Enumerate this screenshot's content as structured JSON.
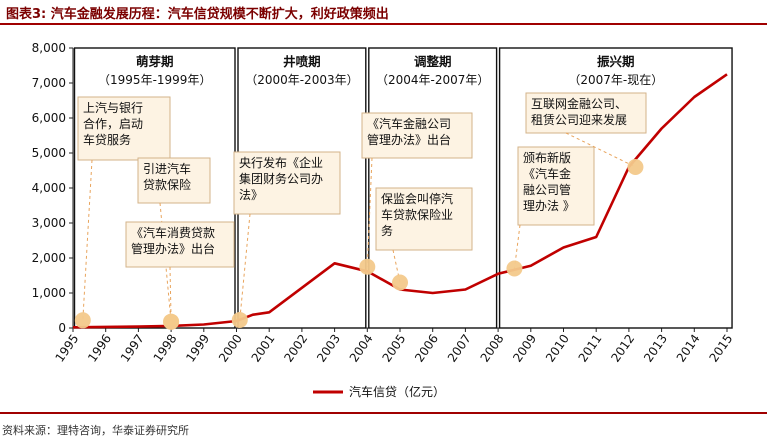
{
  "header": {
    "title": "图表3:   汽车金融发展历程：汽车信贷规模不断扩大，利好政策频出"
  },
  "footer": {
    "source": "资料来源：理特咨询，华泰证券研究所"
  },
  "chart_data": {
    "type": "line",
    "x": [
      "1995",
      "1996",
      "1997",
      "1998",
      "1999",
      "2000",
      "2001",
      "2002",
      "2003",
      "2004",
      "2005",
      "2006",
      "2007",
      "2008",
      "2009",
      "2010",
      "2011",
      "2012",
      "2013",
      "2014",
      "2015"
    ],
    "ylim": [
      0,
      8000
    ],
    "yticks": [
      "0",
      "1,000",
      "2,000",
      "3,000",
      "4,000",
      "5,000",
      "6,000",
      "7,000",
      "8,000"
    ],
    "series": [
      {
        "name": "汽车信贷（亿元）",
        "color": "#c00000",
        "x": [
          1995,
          1996,
          1997,
          1998,
          1999,
          2000,
          2000.5,
          2001,
          2002,
          2003,
          2004,
          2005,
          2006,
          2007,
          2008,
          2009,
          2010,
          2011,
          2012,
          2013,
          2014,
          2015
        ],
        "values": [
          20,
          30,
          40,
          60,
          100,
          200,
          380,
          450,
          1150,
          1850,
          1620,
          1100,
          1000,
          1100,
          1550,
          1780,
          2300,
          2600,
          4600,
          5700,
          6600,
          7250
        ]
      }
    ],
    "periods": [
      {
        "name": "萌芽期",
        "range": "（1995年-1999年）",
        "from": 1995,
        "to": 2000
      },
      {
        "name": "井喷期",
        "range": "（2000年-2003年）",
        "from": 2000,
        "to": 2004
      },
      {
        "name": "调整期",
        "range": "（2004年-2007年）",
        "from": 2004,
        "to": 2008
      },
      {
        "name": "振兴期",
        "range": "（2007年-现在）",
        "from": 2008,
        "to": 2015.2
      }
    ],
    "events": [
      {
        "x": 1995.3,
        "y": 220,
        "lines": [
          "上汽与银行",
          "合作，启动",
          "车贷服务"
        ]
      },
      {
        "x": 1998.0,
        "y": 180,
        "lines": [
          "引进汽车",
          "贷款保险"
        ]
      },
      {
        "x": 1998.0,
        "y": 180,
        "lines": [
          "《汽车消费贷款",
          "管理办法》出台"
        ]
      },
      {
        "x": 2000.1,
        "y": 230,
        "lines": [
          "央行发布《企业",
          "集团财务公司办",
          "法》"
        ]
      },
      {
        "x": 2004.0,
        "y": 1750,
        "lines": [
          "《汽车金融公司",
          "管理办法》出台"
        ]
      },
      {
        "x": 2005.0,
        "y": 1300,
        "lines": [
          "保监会叫停汽",
          "车贷款保险业",
          "务"
        ]
      },
      {
        "x": 2008.5,
        "y": 1700,
        "lines": [
          "颁布新版",
          "《汽车金",
          "融公司管",
          "理办法 》"
        ]
      },
      {
        "x": 2012.2,
        "y": 4600,
        "lines": [
          "互联网金融公司、",
          "租赁公司迎来发展"
        ]
      }
    ],
    "legend_position": "bottom-center"
  }
}
